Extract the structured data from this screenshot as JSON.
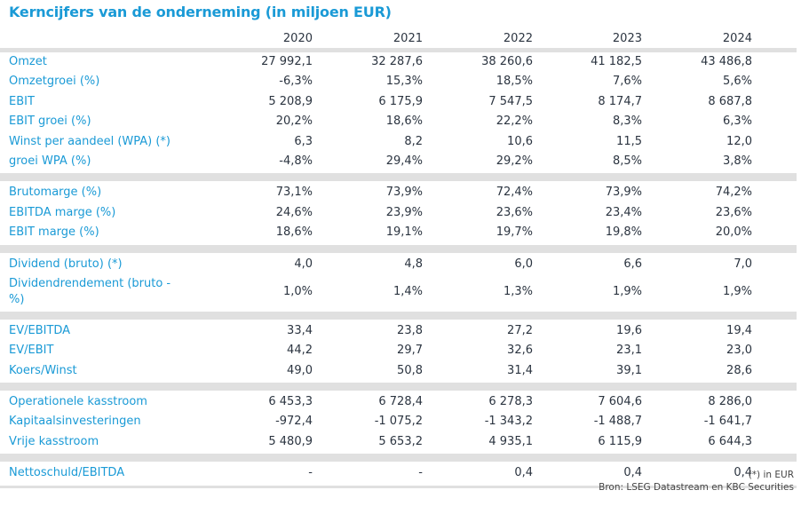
{
  "title": "Kerncijfers van de onderneming (in miljoen EUR)",
  "years": [
    "2020",
    "2021",
    "2022",
    "2023",
    "2024"
  ],
  "groups": [
    [
      {
        "label": "Omzet",
        "values": [
          "27 992,1",
          "32 287,6",
          "38 260,6",
          "41 182,5",
          "43 486,8"
        ]
      },
      {
        "label": "Omzetgroei (%)",
        "values": [
          "-6,3%",
          "15,3%",
          "18,5%",
          "7,6%",
          "5,6%"
        ]
      },
      {
        "label": "EBIT",
        "values": [
          "5 208,9",
          "6 175,9",
          "7 547,5",
          "8 174,7",
          "8 687,8"
        ]
      },
      {
        "label": "EBIT groei (%)",
        "values": [
          "20,2%",
          "18,6%",
          "22,2%",
          "8,3%",
          "6,3%"
        ]
      },
      {
        "label": "Winst per aandeel (WPA) (*)",
        "values": [
          "6,3",
          "8,2",
          "10,6",
          "11,5",
          "12,0"
        ]
      },
      {
        "label": "groei WPA (%)",
        "values": [
          "-4,8%",
          "29,4%",
          "29,2%",
          "8,5%",
          "3,8%"
        ]
      }
    ],
    [
      {
        "label": "Brutomarge (%)",
        "values": [
          "73,1%",
          "73,9%",
          "72,4%",
          "73,9%",
          "74,2%"
        ]
      },
      {
        "label": "EBITDA marge (%)",
        "values": [
          "24,6%",
          "23,9%",
          "23,6%",
          "23,4%",
          "23,6%"
        ]
      },
      {
        "label": "EBIT marge (%)",
        "values": [
          "18,6%",
          "19,1%",
          "19,7%",
          "19,8%",
          "20,0%"
        ]
      }
    ],
    [
      {
        "label": "Dividend (bruto) (*)",
        "values": [
          "4,0",
          "4,8",
          "6,0",
          "6,6",
          "7,0"
        ]
      },
      {
        "label": "Dividendrendement (bruto - %)",
        "values": [
          "1,0%",
          "1,4%",
          "1,3%",
          "1,9%",
          "1,9%"
        ],
        "tall": true
      }
    ],
    [
      {
        "label": "EV/EBITDA",
        "values": [
          "33,4",
          "23,8",
          "27,2",
          "19,6",
          "19,4"
        ]
      },
      {
        "label": "EV/EBIT",
        "values": [
          "44,2",
          "29,7",
          "32,6",
          "23,1",
          "23,0"
        ]
      },
      {
        "label": "Koers/Winst",
        "values": [
          "49,0",
          "50,8",
          "31,4",
          "39,1",
          "28,6"
        ]
      }
    ],
    [
      {
        "label": "Operationele kasstroom",
        "values": [
          "6 453,3",
          "6 728,4",
          "6 278,3",
          "7 604,6",
          "8 286,0"
        ]
      },
      {
        "label": "Kapitaalsinvesteringen",
        "values": [
          "-972,4",
          "-1 075,2",
          "-1 343,2",
          "-1 488,7",
          "-1 641,7"
        ]
      },
      {
        "label": "Vrije kasstroom",
        "values": [
          "5 480,9",
          "5 653,2",
          "4 935,1",
          "6 115,9",
          "6 644,3"
        ]
      }
    ],
    [
      {
        "label": "Nettoschuld/EBITDA",
        "values": [
          "-",
          "-",
          "0,4",
          "0,4",
          "0,4"
        ]
      }
    ]
  ],
  "footnote": "(*) in EUR",
  "source": "Bron: LSEG Datastream en KBC Securities",
  "colors": {
    "label": "#1a9ad6",
    "value": "#2b3440",
    "band": "#e0e0e0"
  }
}
